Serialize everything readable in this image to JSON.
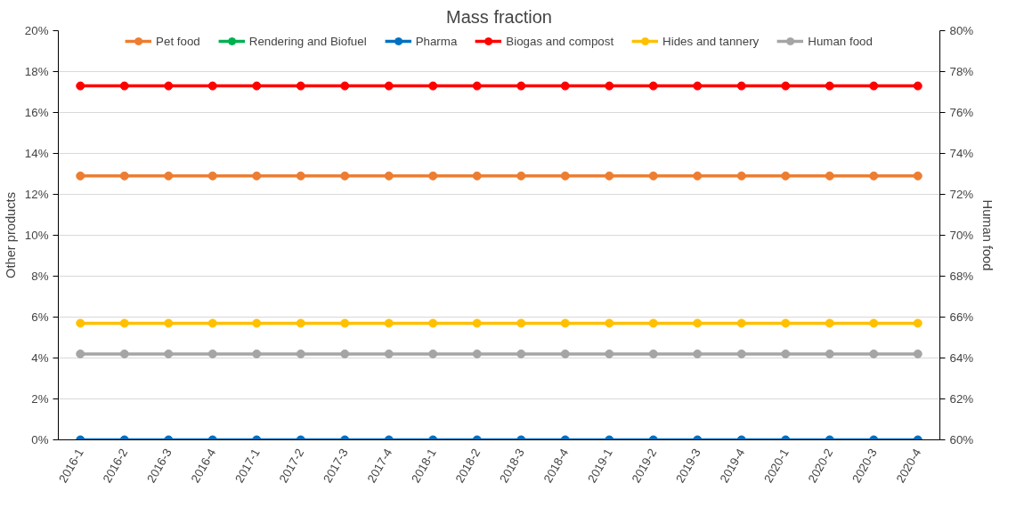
{
  "chart_data": {
    "type": "line",
    "title": "Mass fraction",
    "ylabel": "Other products",
    "y2label": "Human food",
    "categories": [
      "2016-1",
      "2016-2",
      "2016-3",
      "2016-4",
      "2017-1",
      "2017-2",
      "2017-3",
      "2017-4",
      "2018-1",
      "2018-2",
      "2018-3",
      "2018-4",
      "2019-1",
      "2019-2",
      "2019-3",
      "2019-4",
      "2020-1",
      "2020-2",
      "2020-3",
      "2020-4"
    ],
    "series": [
      {
        "name": "Pet food",
        "color": "#ed7d31",
        "values": [
          12.9,
          12.9,
          12.9,
          12.9,
          12.9,
          12.9,
          12.9,
          12.9,
          12.9,
          12.9,
          12.9,
          12.9,
          12.9,
          12.9,
          12.9,
          12.9,
          12.9,
          12.9,
          12.9,
          12.9
        ]
      },
      {
        "name": "Rendering and Biofuel",
        "color": "#00b050",
        "values": [
          null,
          null,
          null,
          null,
          null,
          null,
          null,
          null,
          null,
          null,
          null,
          null,
          null,
          null,
          null,
          null,
          null,
          null,
          null,
          null
        ]
      },
      {
        "name": "Pharma",
        "color": "#0070c0",
        "values": [
          0,
          0,
          0,
          0,
          0,
          0,
          0,
          0,
          0,
          0,
          0,
          0,
          0,
          0,
          0,
          0,
          0,
          0,
          0,
          0
        ]
      },
      {
        "name": "Biogas and compost",
        "color": "#ff0000",
        "values": [
          17.3,
          17.3,
          17.3,
          17.3,
          17.3,
          17.3,
          17.3,
          17.3,
          17.3,
          17.3,
          17.3,
          17.3,
          17.3,
          17.3,
          17.3,
          17.3,
          17.3,
          17.3,
          17.3,
          17.3
        ]
      },
      {
        "name": "Hides and tannery",
        "color": "#ffc000",
        "values": [
          5.7,
          5.7,
          5.7,
          5.7,
          5.7,
          5.7,
          5.7,
          5.7,
          5.7,
          5.7,
          5.7,
          5.7,
          5.7,
          5.7,
          5.7,
          5.7,
          5.7,
          5.7,
          5.7,
          5.7
        ]
      },
      {
        "name": "Human food",
        "color": "#a5a5a5",
        "axis": "y2",
        "values": [
          64.2,
          64.2,
          64.2,
          64.2,
          64.2,
          64.2,
          64.2,
          64.2,
          64.2,
          64.2,
          64.2,
          64.2,
          64.2,
          64.2,
          64.2,
          64.2,
          64.2,
          64.2,
          64.2,
          64.2
        ]
      }
    ],
    "ylim": [
      0,
      20
    ],
    "yticks": [
      {
        "value": 0,
        "label": "0%"
      },
      {
        "value": 2,
        "label": "2%"
      },
      {
        "value": 4,
        "label": "4%"
      },
      {
        "value": 6,
        "label": "6%"
      },
      {
        "value": 8,
        "label": "8%"
      },
      {
        "value": 10,
        "label": "10%"
      },
      {
        "value": 12,
        "label": "12%"
      },
      {
        "value": 14,
        "label": "14%"
      },
      {
        "value": 16,
        "label": "16%"
      },
      {
        "value": 18,
        "label": "18%"
      },
      {
        "value": 20,
        "label": "20%"
      }
    ],
    "y2lim": [
      60,
      80
    ],
    "y2ticks": [
      {
        "value": 60,
        "label": "60%"
      },
      {
        "value": 62,
        "label": "62%"
      },
      {
        "value": 64,
        "label": "64%"
      },
      {
        "value": 66,
        "label": "66%"
      },
      {
        "value": 68,
        "label": "68%"
      },
      {
        "value": 70,
        "label": "70%"
      },
      {
        "value": 72,
        "label": "72%"
      },
      {
        "value": 74,
        "label": "74%"
      },
      {
        "value": 76,
        "label": "76%"
      },
      {
        "value": 78,
        "label": "78%"
      },
      {
        "value": 80,
        "label": "80%"
      }
    ],
    "grid": "y",
    "legend": "top",
    "marker": "circle",
    "line_style": "solid"
  }
}
